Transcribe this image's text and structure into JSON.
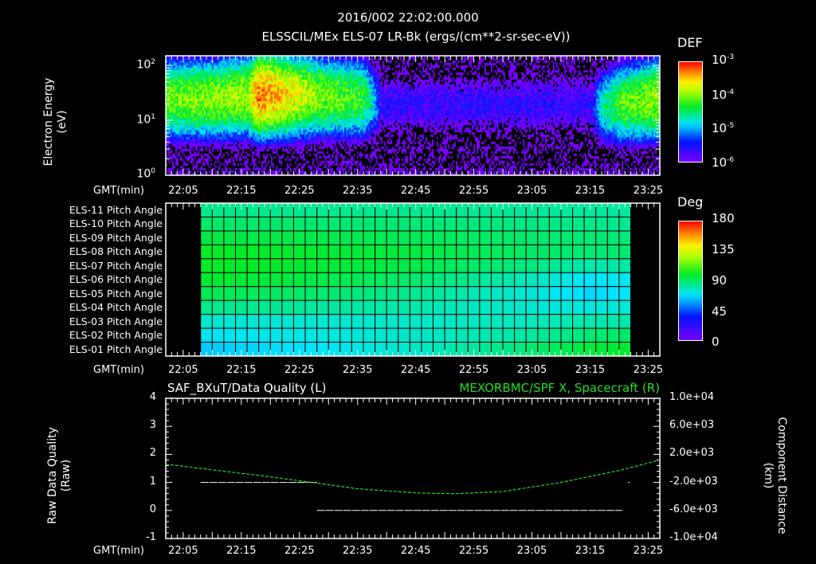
{
  "chart_data": [
    {
      "type": "heatmap",
      "title": "2016/002 22:02:00.000",
      "subtitle": "ELSSCIL/MEx ELS-07 LR-Bk  (ergs/(cm**2-sr-sec-eV))",
      "ylabel": [
        "Electron Energy",
        "(eV)"
      ],
      "yticks": [
        "10^2",
        "10^1",
        "10^0"
      ],
      "ylim": [
        1,
        145
      ],
      "yscale": "log",
      "xlabel": "GMT(min)",
      "xticks": [
        "22:05",
        "22:15",
        "22:25",
        "22:35",
        "22:45",
        "22:55",
        "23:05",
        "23:15",
        "23:25"
      ],
      "xlim_min": [
        2,
        87
      ],
      "colorbar": {
        "label": "DEF",
        "ticks": [
          "10^-3",
          "10^-4",
          "10^-5",
          "10^-6"
        ],
        "range_log10": [
          -6.3,
          -3
        ]
      },
      "intensity_profile": {
        "t_min": [
          2,
          10,
          16,
          18,
          22,
          28,
          36,
          38,
          39,
          60,
          75,
          77,
          80,
          87
        ],
        "peak_log10_def": [
          -4.2,
          -4.1,
          -4.0,
          -3.3,
          -3.6,
          -4.1,
          -4.4,
          -5.2,
          -5.9,
          -5.9,
          -5.9,
          -4.9,
          -4.3,
          -4.0
        ],
        "peak_energy_ev": [
          25,
          25,
          28,
          30,
          30,
          28,
          25,
          22,
          20,
          20,
          20,
          18,
          20,
          25
        ]
      }
    },
    {
      "type": "heatmap",
      "ylabel_rows": [
        "ELS-11 Pitch Angle",
        "ELS-10 Pitch Angle",
        "ELS-09 Pitch Angle",
        "ELS-08 Pitch Angle",
        "ELS-07 Pitch Angle",
        "ELS-06 Pitch Angle",
        "ELS-05 Pitch Angle",
        "ELS-04 Pitch Angle",
        "ELS-03 Pitch Angle",
        "ELS-02 Pitch Angle",
        "ELS-01 Pitch Angle"
      ],
      "xlabel": "GMT(min)",
      "xticks": [
        "22:05",
        "22:15",
        "22:25",
        "22:35",
        "22:45",
        "22:55",
        "23:05",
        "23:15",
        "23:25"
      ],
      "data_t_min": [
        8,
        82
      ],
      "colorbar": {
        "label": "Deg",
        "ticks": [
          "180",
          "135",
          "90",
          "45",
          "0"
        ],
        "range": [
          0,
          180
        ]
      },
      "anchor_t_min": [
        8,
        25,
        45,
        65,
        75,
        82
      ],
      "values_deg": [
        [
          85,
          84,
          84,
          83,
          82,
          82
        ],
        [
          90,
          89,
          88,
          86,
          85,
          84
        ],
        [
          95,
          94,
          92,
          89,
          88,
          87
        ],
        [
          100,
          98,
          95,
          90,
          88,
          89
        ],
        [
          100,
          98,
          94,
          86,
          80,
          82
        ],
        [
          98,
          95,
          89,
          78,
          68,
          72
        ],
        [
          93,
          90,
          84,
          74,
          66,
          70
        ],
        [
          85,
          83,
          80,
          75,
          73,
          75
        ],
        [
          75,
          75,
          76,
          78,
          80,
          80
        ],
        [
          70,
          72,
          76,
          82,
          88,
          90
        ],
        [
          64,
          68,
          76,
          88,
          96,
          98
        ]
      ]
    },
    {
      "type": "line",
      "title_left": "SAF_BXuT/Data Quality (L)",
      "title_right": "MEXORBMC/SPF X, Spacecraft (R)",
      "ylabel_left": [
        "Raw Data Quality",
        "(Raw)"
      ],
      "ylabel_right": [
        "Component Distance",
        "(km)"
      ],
      "ylim_left": [
        -1,
        4
      ],
      "yticks_left": [
        "4",
        "3",
        "2",
        "1",
        "0",
        "-1"
      ],
      "ylim_right": [
        -10000,
        10000
      ],
      "yticks_right": [
        "1.0e+04",
        "6.0e+03",
        "2.0e+03",
        "-2.0e+03",
        "-6.0e+03",
        "-1.0e+04"
      ],
      "xlabel": "GMT(min)",
      "xticks": [
        "22:05",
        "22:15",
        "22:25",
        "22:35",
        "22:45",
        "22:55",
        "23:05",
        "23:15",
        "23:25"
      ],
      "series": [
        {
          "name": "Data Quality",
          "color": "#ffffff",
          "segments": [
            {
              "t": [
                8,
                28
              ],
              "v": 1
            },
            {
              "t": [
                28,
                80.5
              ],
              "v": 0
            },
            {
              "t": [
                81.5,
                81.8
              ],
              "v": 1
            }
          ]
        },
        {
          "name": "SPF X",
          "color": "#22dd22",
          "t_min": [
            2,
            10,
            20,
            28,
            35,
            45,
            52,
            60,
            70,
            80,
            87
          ],
          "km": [
            600,
            -200,
            -1200,
            -2100,
            -2900,
            -3500,
            -3600,
            -3300,
            -2000,
            -300,
            1200
          ]
        }
      ]
    }
  ]
}
